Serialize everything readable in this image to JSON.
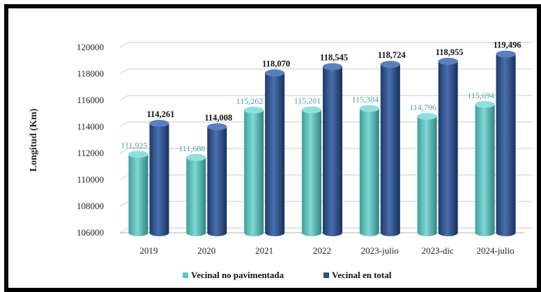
{
  "chart_data": {
    "type": "bar",
    "categories": [
      "2019",
      "2020",
      "2021",
      "2022",
      "2023-julio",
      "2023-dic",
      "2024-julio"
    ],
    "series": [
      {
        "name": "Vecinal no pavimentada",
        "values": [
          111925,
          111688,
          115262,
          115281,
          115384,
          114796,
          115694
        ],
        "labels": [
          "111,925",
          "111,688",
          "115,262",
          "115,281",
          "115,384",
          "114,796",
          "115,694"
        ]
      },
      {
        "name": "Vecinal en  total",
        "values": [
          114261,
          114008,
          118070,
          118545,
          118724,
          118955,
          119496
        ],
        "labels": [
          "114,261",
          "114,008",
          "118,070",
          "118,545",
          "118,724",
          "118,955",
          "119,496"
        ]
      }
    ],
    "ylabel": "Longitud (Km)",
    "xlabel": "",
    "ylim": [
      106000,
      120000
    ],
    "yticks": [
      "106000",
      "108000",
      "110000",
      "112000",
      "114000",
      "116000",
      "118000",
      "120000"
    ],
    "grid": true,
    "legend_position": "bottom",
    "colors": {
      "series_a": "#5fc4c0",
      "series_b": "#2e4f86"
    }
  }
}
